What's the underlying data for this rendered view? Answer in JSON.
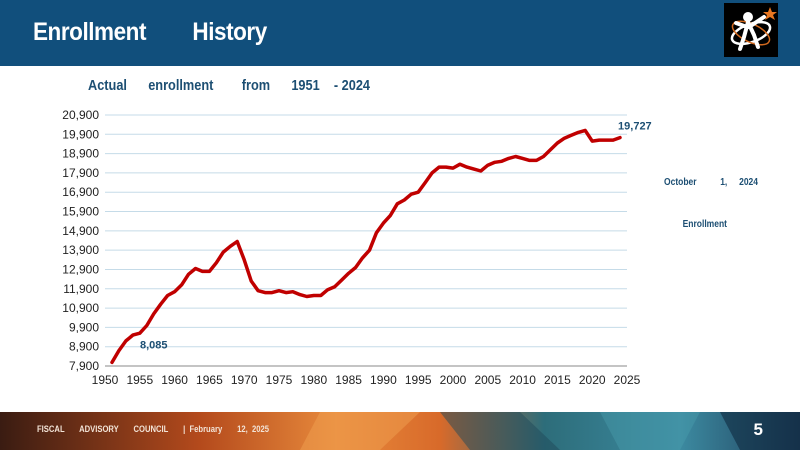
{
  "slide": {
    "title": "Enrollment        History",
    "subtitle": "Actual      enrollment        from      1951    - 2024",
    "note_line1": "October          1,     2024",
    "note_line2": "Enrollment",
    "footer": "FISCAL       ADVISORY       COUNCIL       |  February       12,  2025",
    "page_number": "5"
  },
  "colors": {
    "header": "#114f7c",
    "series": "#c00000",
    "text": "#1d4f73"
  },
  "chart_data": {
    "type": "line",
    "title": "",
    "xlabel": "",
    "ylabel": "",
    "xlim": [
      1950,
      2025
    ],
    "ylim": [
      7900,
      20900
    ],
    "grid": true,
    "xticks": [
      "1950",
      "1955",
      "1960",
      "1965",
      "1970",
      "1975",
      "1980",
      "1985",
      "1990",
      "1995",
      "2000",
      "2005",
      "2010",
      "2015",
      "2020",
      "2025"
    ],
    "yticks": [
      "20,900",
      "19,900",
      "18,900",
      "17,900",
      "16,900",
      "15,900",
      "14,900",
      "13,900",
      "12,900",
      "11,900",
      "10,900",
      "9,900",
      "8,900",
      "7,900"
    ],
    "annotations": [
      {
        "text": "8,085",
        "x": 1951,
        "y": 8085
      },
      {
        "text": "19,727",
        "x": 2024,
        "y": 19727
      }
    ],
    "series": [
      {
        "x": [
          1951,
          1952,
          1953,
          1954,
          1955,
          1956,
          1957,
          1958,
          1959,
          1960,
          1961,
          1962,
          1963,
          1964,
          1965,
          1966,
          1967,
          1968,
          1969,
          1970,
          1971,
          1972,
          1973,
          1974,
          1975,
          1976,
          1977,
          1978,
          1979,
          1980,
          1981,
          1982,
          1983,
          1984,
          1985,
          1986,
          1987,
          1988,
          1989,
          1990,
          1991,
          1992,
          1993,
          1994,
          1995,
          1996,
          1997,
          1998,
          1999,
          2000,
          2001,
          2002,
          2003,
          2004,
          2005,
          2006,
          2007,
          2008,
          2009,
          2010,
          2011,
          2012,
          2013,
          2014,
          2015,
          2016,
          2017,
          2018,
          2019,
          2020,
          2021,
          2022,
          2023,
          2024
        ],
        "y": [
          8085,
          8700,
          9200,
          9500,
          9600,
          10000,
          10600,
          11100,
          11550,
          11750,
          12100,
          12650,
          12950,
          12800,
          12800,
          13250,
          13800,
          14100,
          14350,
          13400,
          12300,
          11800,
          11700,
          11700,
          11800,
          11700,
          11750,
          11600,
          11500,
          11550,
          11550,
          11850,
          12000,
          12350,
          12700,
          13000,
          13500,
          13900,
          14800,
          15300,
          15700,
          16300,
          16500,
          16800,
          16900,
          17400,
          17900,
          18200,
          18200,
          18150,
          18350,
          18200,
          18100,
          18000,
          18300,
          18450,
          18500,
          18650,
          18750,
          18650,
          18550,
          18550,
          18750,
          19100,
          19450,
          19700,
          19850,
          20000,
          20100,
          19550,
          19600,
          19600,
          19600,
          19727
        ]
      }
    ]
  }
}
